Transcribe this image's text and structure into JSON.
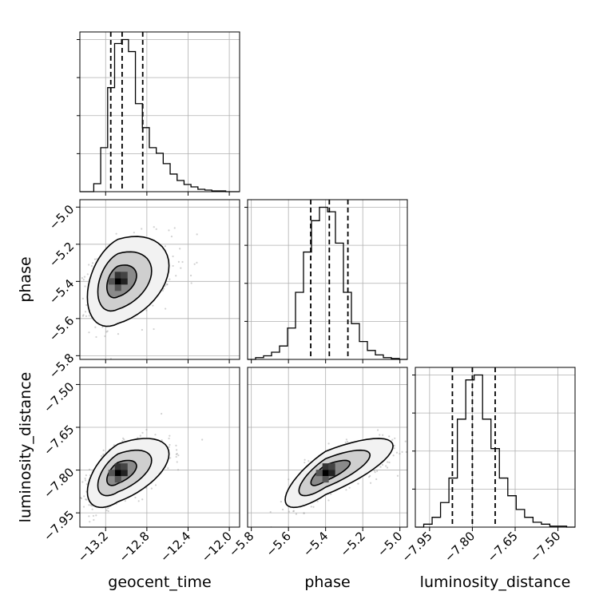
{
  "chart_data": {
    "type": "corner",
    "parameters": [
      "geocent_time",
      "phase",
      "luminosity_distance"
    ],
    "axis_labels": {
      "geocent_time": "geocent_time",
      "phase": "phase",
      "luminosity_distance": "luminosity_distance"
    },
    "ranges": {
      "geocent_time": [
        -13.45,
        -11.9
      ],
      "phase": [
        -5.82,
        -4.96
      ],
      "luminosity_distance": [
        -8.0,
        -7.44
      ]
    },
    "ticks": {
      "geocent_time": {
        "values": [
          -13.2,
          -12.8,
          -12.4,
          -12.0
        ],
        "labels": [
          "−13.2",
          "−12.8",
          "−12.4",
          "−12.0"
        ]
      },
      "phase": {
        "values": [
          -5.8,
          -5.6,
          -5.4,
          -5.2,
          -5.0
        ],
        "labels": [
          "−5.8",
          "−5.6",
          "−5.4",
          "−5.2",
          "−5.0"
        ]
      },
      "luminosity_distance": {
        "values": [
          -7.95,
          -7.8,
          -7.65,
          -7.5
        ],
        "labels": [
          "−7.95",
          "−7.80",
          "−7.65",
          "−7.50"
        ]
      }
    },
    "quantiles": {
      "geocent_time": [
        -13.15,
        -13.04,
        -12.84
      ],
      "phase": [
        -5.48,
        -5.38,
        -5.28
      ],
      "luminosity_distance": [
        -7.87,
        -7.8,
        -7.72
      ]
    },
    "histograms": {
      "geocent_time": [
        0,
        0,
        10,
        55,
        130,
        185,
        190,
        175,
        110,
        80,
        55,
        48,
        35,
        22,
        14,
        9,
        6,
        3,
        2,
        1,
        1,
        0,
        0
      ],
      "phase": [
        0,
        2,
        4,
        8,
        15,
        35,
        75,
        120,
        155,
        170,
        165,
        130,
        75,
        40,
        20,
        10,
        5,
        2,
        1,
        0
      ],
      "luminosity_distance": [
        0,
        3,
        10,
        25,
        50,
        110,
        150,
        155,
        110,
        80,
        50,
        32,
        18,
        10,
        5,
        3,
        1,
        1,
        0
      ]
    },
    "correlation": {
      "geocent_time|phase": 0.35,
      "geocent_time|luminosity_distance": 0.55,
      "phase|luminosity_distance": 0.78
    },
    "sigmas": {
      "geocent_time": 0.15,
      "phase": 0.11,
      "luminosity_distance": 0.055
    },
    "modes": {
      "geocent_time": -13.08,
      "phase": -5.4,
      "luminosity_distance": -7.81
    },
    "grid": true
  }
}
